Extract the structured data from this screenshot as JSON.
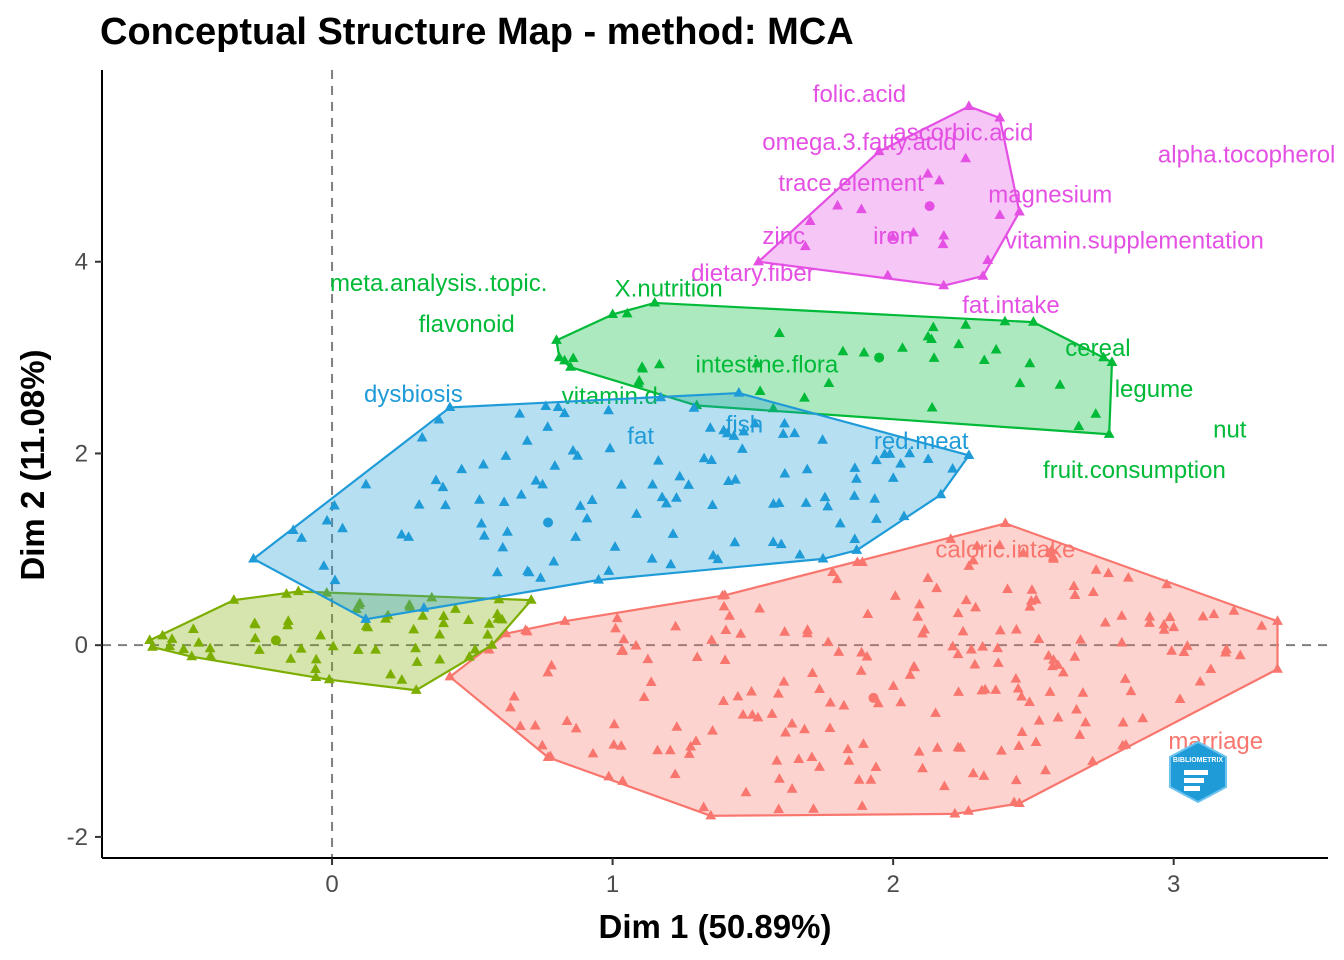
{
  "chart_data": {
    "type": "scatter",
    "title": "Conceptual Structure Map - method: MCA",
    "xlabel": "Dim 1 (50.89%)",
    "ylabel": "Dim 2 (11.08%)",
    "xlim": [
      -0.82,
      3.55
    ],
    "ylim": [
      -2.22,
      6.0
    ],
    "x_ticks": [
      0,
      1,
      2,
      3
    ],
    "y_ticks": [
      -2,
      0,
      2,
      4
    ],
    "reference_lines": {
      "x": 0,
      "y": 0,
      "style": "dashed"
    },
    "grid": false,
    "legend": "none",
    "logo": {
      "name": "bibliometrix-logo",
      "text": "BIBLIOMETRIX"
    },
    "clusters": [
      {
        "id": "c1",
        "color": "#f8766d",
        "centroid": [
          1.93,
          -0.55
        ],
        "hull": [
          [
            0.42,
            -0.33
          ],
          [
            0.62,
            0.12
          ],
          [
            0.83,
            0.25
          ],
          [
            1.4,
            0.52
          ],
          [
            2.4,
            1.27
          ],
          [
            3.37,
            0.25
          ],
          [
            3.37,
            -0.25
          ],
          [
            2.45,
            -1.65
          ],
          [
            2.22,
            -1.76
          ],
          [
            1.35,
            -1.78
          ],
          [
            0.77,
            -1.17
          ]
        ],
        "labels": [
          {
            "text": "caloric.intake",
            "x": 2.4,
            "y": 1.0
          },
          {
            "text": "marriage",
            "x": 3.15,
            "y": -1.0
          }
        ]
      },
      {
        "id": "c2",
        "color": "#7cae00",
        "centroid": [
          -0.2,
          0.05
        ],
        "hull": [
          [
            -0.65,
            0.05
          ],
          [
            -0.35,
            0.47
          ],
          [
            -0.12,
            0.56
          ],
          [
            0.71,
            0.47
          ],
          [
            0.57,
            0.0
          ],
          [
            0.3,
            -0.47
          ],
          [
            -0.01,
            -0.36
          ],
          [
            -0.5,
            -0.12
          ],
          [
            -0.64,
            -0.02
          ]
        ],
        "labels": []
      },
      {
        "id": "c3",
        "color": "#00ba38",
        "centroid": [
          1.95,
          3.0
        ],
        "hull": [
          [
            0.8,
            3.18
          ],
          [
            1.0,
            3.45
          ],
          [
            1.15,
            3.57
          ],
          [
            2.5,
            3.37
          ],
          [
            2.75,
            3.0
          ],
          [
            2.78,
            2.95
          ],
          [
            2.77,
            2.2
          ],
          [
            1.3,
            2.5
          ],
          [
            0.85,
            2.9
          ],
          [
            0.81,
            3.0
          ]
        ],
        "labels": [
          {
            "text": "meta.analysis..topic.",
            "x": 0.38,
            "y": 3.78
          },
          {
            "text": "X.nutrition",
            "x": 1.2,
            "y": 3.72
          },
          {
            "text": "flavonoid",
            "x": 0.48,
            "y": 3.35
          },
          {
            "text": "intestine.flora",
            "x": 1.55,
            "y": 2.93
          },
          {
            "text": "vitamin.d",
            "x": 0.99,
            "y": 2.6
          },
          {
            "text": "cereal",
            "x": 2.73,
            "y": 3.1
          },
          {
            "text": "legume",
            "x": 2.93,
            "y": 2.67
          },
          {
            "text": "nut",
            "x": 3.2,
            "y": 2.25
          },
          {
            "text": "fruit.consumption",
            "x": 2.86,
            "y": 1.83
          }
        ]
      },
      {
        "id": "c4",
        "color": "#1f9bd8",
        "centroid": [
          0.77,
          1.28
        ],
        "hull": [
          [
            -0.28,
            0.9
          ],
          [
            0.42,
            2.48
          ],
          [
            1.45,
            2.63
          ],
          [
            2.27,
            1.98
          ],
          [
            2.17,
            1.57
          ],
          [
            1.87,
            0.99
          ],
          [
            1.75,
            0.9
          ],
          [
            0.95,
            0.68
          ],
          [
            0.12,
            0.27
          ]
        ],
        "labels": [
          {
            "text": "dysbiosis",
            "x": 0.29,
            "y": 2.62
          },
          {
            "text": "fat",
            "x": 1.1,
            "y": 2.18
          },
          {
            "text": "fish",
            "x": 1.47,
            "y": 2.3
          },
          {
            "text": "red.meat",
            "x": 2.1,
            "y": 2.13
          }
        ]
      },
      {
        "id": "c5",
        "color": "#e44fe4",
        "centroid": [
          2.13,
          4.58
        ],
        "hull": [
          [
            1.52,
            4.0
          ],
          [
            1.95,
            5.15
          ],
          [
            2.27,
            5.62
          ],
          [
            2.38,
            5.5
          ],
          [
            2.45,
            4.52
          ],
          [
            2.32,
            3.85
          ],
          [
            2.18,
            3.75
          ]
        ],
        "labels": [
          {
            "text": "folic.acid",
            "x": 1.88,
            "y": 5.75
          },
          {
            "text": "ascorbic.acid",
            "x": 2.25,
            "y": 5.35
          },
          {
            "text": "omega.3.fatty.acid",
            "x": 1.88,
            "y": 5.25
          },
          {
            "text": "alpha.tocopherol",
            "x": 3.26,
            "y": 5.12
          },
          {
            "text": "trace.element",
            "x": 1.85,
            "y": 4.82
          },
          {
            "text": "magnesium",
            "x": 2.56,
            "y": 4.7
          },
          {
            "text": "zinc",
            "x": 1.61,
            "y": 4.27
          },
          {
            "text": "iron",
            "x": 2.0,
            "y": 4.27
          },
          {
            "text": "vitamin.supplementation",
            "x": 2.86,
            "y": 4.22
          },
          {
            "text": "dietary.fiber",
            "x": 1.5,
            "y": 3.88
          },
          {
            "text": "fat.intake",
            "x": 2.42,
            "y": 3.55
          }
        ]
      }
    ]
  }
}
